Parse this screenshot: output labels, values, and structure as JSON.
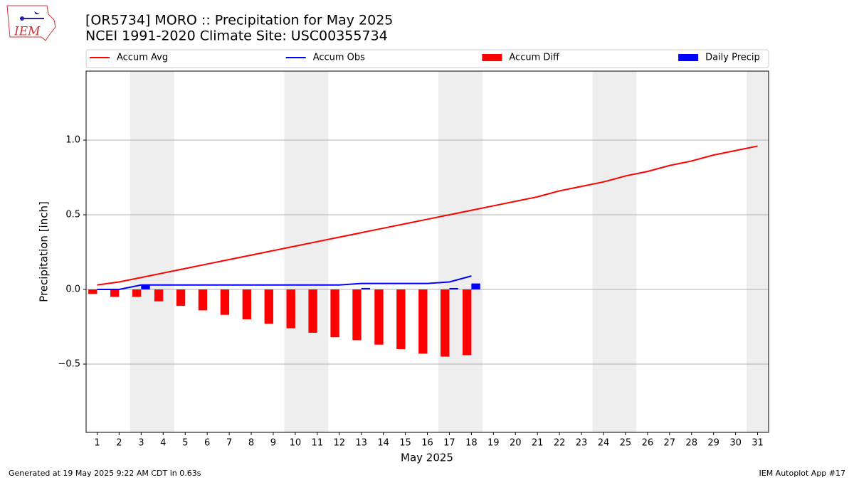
{
  "chart_data": {
    "type": "line",
    "title": "[OR5734] MORO :: Precipitation for May 2025",
    "subtitle": "NCEI 1991-2020 Climate Site: USC00355734",
    "logo_text": "IEM",
    "xlabel": "May 2025",
    "ylabel": "Precipitation [inch]",
    "footer_left": "Generated at 19 May 2025 9:22 AM CDT in 0.63s",
    "footer_right": "IEM Autoplot App #17",
    "x": [
      1,
      2,
      3,
      4,
      5,
      6,
      7,
      8,
      9,
      10,
      11,
      12,
      13,
      14,
      15,
      16,
      17,
      18,
      19,
      20,
      21,
      22,
      23,
      24,
      25,
      26,
      27,
      28,
      29,
      30,
      31
    ],
    "xlim": [
      0.5,
      31.5
    ],
    "xticks": [
      1,
      2,
      3,
      4,
      5,
      6,
      7,
      8,
      9,
      10,
      11,
      12,
      13,
      14,
      15,
      16,
      17,
      18,
      19,
      20,
      21,
      22,
      23,
      24,
      25,
      26,
      27,
      28,
      29,
      30,
      31
    ],
    "ylim": [
      -0.957,
      1.462
    ],
    "yticks": [
      {
        "value": -0.5,
        "label": "−0.5"
      },
      {
        "value": 0,
        "label": "0.0"
      },
      {
        "value": 0.5,
        "label": "0.5"
      },
      {
        "value": 1,
        "label": "1.0"
      }
    ],
    "grid": true,
    "shaded_spans": [
      [
        2.5,
        4.5
      ],
      [
        9.5,
        11.5
      ],
      [
        16.5,
        18.5
      ],
      [
        23.5,
        25.5
      ],
      [
        30.5,
        31.5
      ]
    ],
    "series": [
      {
        "name": "Accum Avg",
        "color": "#ff0000",
        "mark": "line",
        "values": [
          0.03,
          0.05,
          0.08,
          0.11,
          0.14,
          0.17,
          0.2,
          0.23,
          0.26,
          0.29,
          0.32,
          0.35,
          0.38,
          0.41,
          0.44,
          0.47,
          0.5,
          0.53,
          0.56,
          0.59,
          0.62,
          0.66,
          0.69,
          0.72,
          0.76,
          0.79,
          0.83,
          0.86,
          0.9,
          0.93,
          0.96
        ]
      },
      {
        "name": "Accum Obs",
        "color": "#0000ff",
        "mark": "line",
        "values": [
          0,
          0,
          0.03,
          0.03,
          0.03,
          0.03,
          0.03,
          0.03,
          0.03,
          0.03,
          0.03,
          0.03,
          0.04,
          0.04,
          0.04,
          0.04,
          0.05,
          0.09,
          null,
          null,
          null,
          null,
          null,
          null,
          null,
          null,
          null,
          null,
          null,
          null,
          null
        ]
      },
      {
        "name": "Accum Diff",
        "color": "#ff0000",
        "mark": "bar",
        "offset": -0.2,
        "values": [
          -0.03,
          -0.05,
          -0.05,
          -0.08,
          -0.11,
          -0.14,
          -0.17,
          -0.2,
          -0.23,
          -0.26,
          -0.29,
          -0.32,
          -0.34,
          -0.37,
          -0.4,
          -0.43,
          -0.45,
          -0.44,
          null,
          null,
          null,
          null,
          null,
          null,
          null,
          null,
          null,
          null,
          null,
          null,
          null
        ]
      },
      {
        "name": "Daily Precip",
        "color": "#0000ff",
        "mark": "bar",
        "offset": 0.2,
        "values": [
          0,
          0,
          0.03,
          0,
          0,
          0,
          0,
          0,
          0,
          0,
          0,
          0,
          0.01,
          0,
          0,
          0,
          0.01,
          0.04,
          null,
          null,
          null,
          null,
          null,
          null,
          null,
          null,
          null,
          null,
          null,
          null,
          null
        ]
      }
    ]
  }
}
